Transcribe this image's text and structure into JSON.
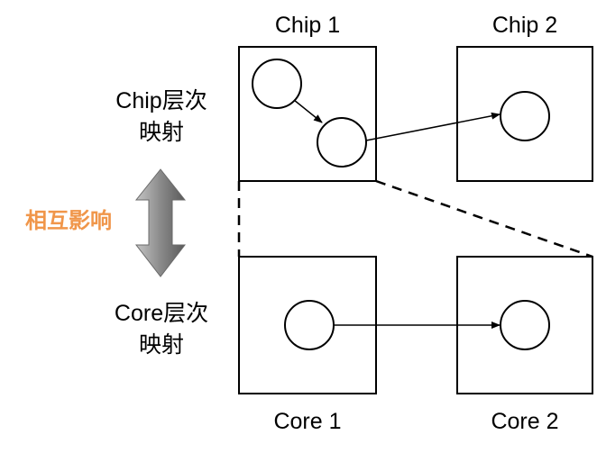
{
  "labels": {
    "chip1": "Chip 1",
    "chip2": "Chip 2",
    "core1": "Core 1",
    "core2": "Core 2"
  },
  "levels": {
    "chip_line1": "Chip层次",
    "chip_line2": "映射",
    "core_line1": "Core层次",
    "core_line2": "映射"
  },
  "interaction": {
    "label": "相互影响",
    "color": "#f0964a"
  },
  "colors": {
    "stroke": "#000000",
    "arrow_gradient_light": "#bdbdbd",
    "arrow_gradient_dark": "#555555"
  }
}
